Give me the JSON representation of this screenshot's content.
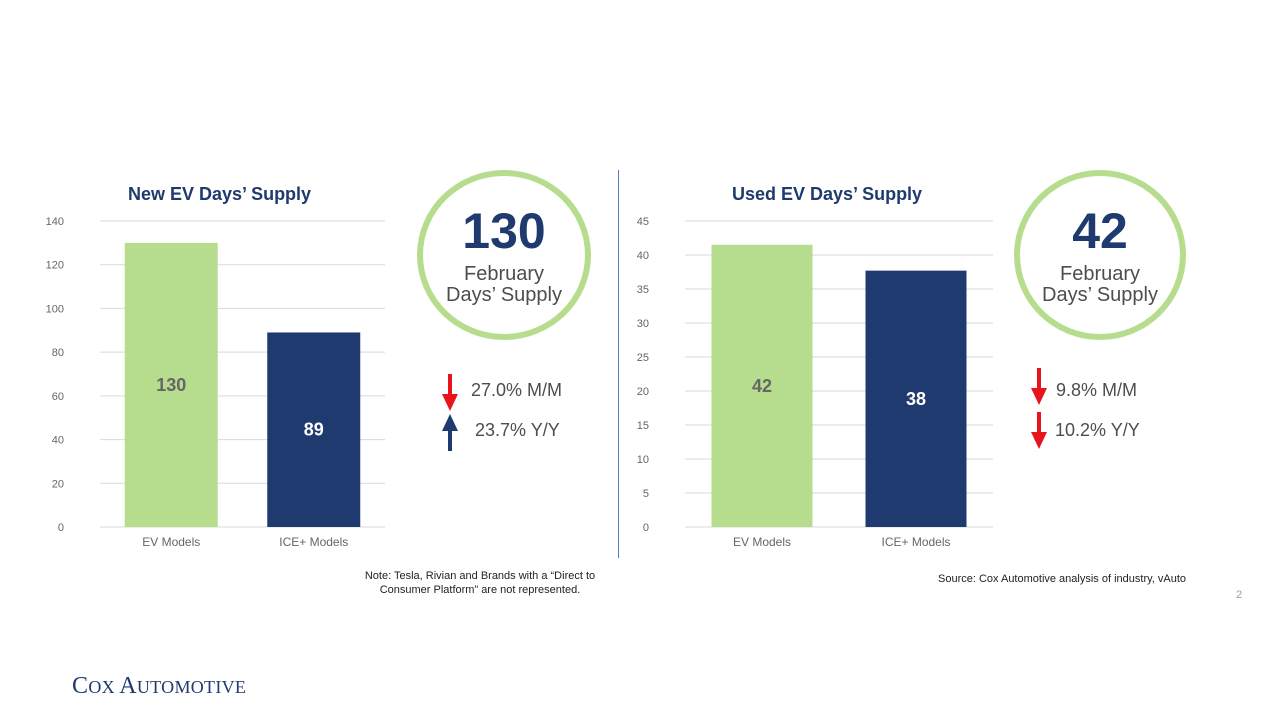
{
  "chart_data": [
    {
      "type": "bar",
      "title": "New EV Days’ Supply",
      "categories": [
        "EV Models",
        "ICE+ Models"
      ],
      "values": [
        130,
        89
      ],
      "data_labels": [
        "130",
        "89"
      ],
      "bar_colors": [
        "#b6dd8d",
        "#1f3a6e"
      ],
      "label_colors": [
        "#666666",
        "#ffffff"
      ],
      "ylim": [
        0,
        140
      ],
      "yticks": [
        "0",
        "20",
        "40",
        "60",
        "80",
        "100",
        "120",
        "140"
      ],
      "grid": true,
      "legend": "none"
    },
    {
      "type": "bar",
      "title": "Used EV Days’ Supply",
      "categories": [
        "EV Models",
        "ICE+ Models"
      ],
      "values": [
        41.5,
        37.7
      ],
      "data_labels": [
        "42",
        "38"
      ],
      "bar_colors": [
        "#b6dd8d",
        "#1f3a6e"
      ],
      "label_colors": [
        "#666666",
        "#ffffff"
      ],
      "ylim": [
        0,
        45
      ],
      "yticks": [
        "0",
        "5",
        "10",
        "15",
        "20",
        "25",
        "30",
        "35",
        "40",
        "45"
      ],
      "grid": true,
      "legend": "none"
    }
  ],
  "left_panel": {
    "ring_value": "130",
    "ring_label_1": "February",
    "ring_label_2": "Days’ Supply",
    "mm_text": "27.0% M/M",
    "mm_direction": "down",
    "yy_text": "23.7% Y/Y",
    "yy_direction": "up"
  },
  "right_panel": {
    "ring_value": "42",
    "ring_label_1": "February",
    "ring_label_2": "Days’ Supply",
    "mm_text": "9.8% M/M",
    "mm_direction": "down",
    "yy_text": "10.2% Y/Y",
    "yy_direction": "down"
  },
  "footer": {
    "note_line1": "Note: Tesla, Rivian and Brands with a “Direct to",
    "note_line2": "Consumer Platform” are not represented.",
    "source": "Source: Cox Automotive analysis of industry, vAuto",
    "page_number": "2",
    "logo_c": "C",
    "logo_ox": "OX",
    "logo_a": "A",
    "logo_utomotive": "UTOMOTIVE"
  },
  "colors": {
    "ev_green": "#b6dd8d",
    "ice_navy": "#1f3a6e",
    "arrow_down": "#e8141c",
    "arrow_up": "#1f3a6e"
  },
  "icons": {
    "down": "arrow-down-icon",
    "up": "arrow-up-icon"
  }
}
